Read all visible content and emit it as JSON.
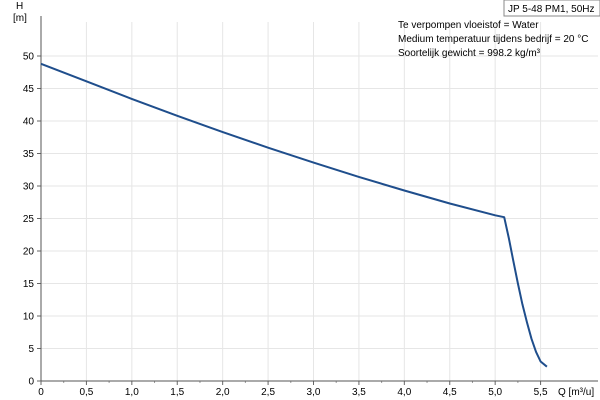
{
  "chart_data": {
    "type": "line",
    "title": "JP 5-48 PM1, 50Hz",
    "xlabel": "Q [m³/u]",
    "ylabel_top": "H",
    "ylabel_unit": "[m]",
    "xlim": [
      0,
      5.6
    ],
    "ylim": [
      0,
      52
    ],
    "x_ticks": [
      "0",
      "0,5",
      "1,0",
      "1,5",
      "2,0",
      "2,5",
      "3,0",
      "3,5",
      "4,0",
      "4,5",
      "5,0",
      "5,5"
    ],
    "y_ticks": [
      "0",
      "5",
      "10",
      "15",
      "20",
      "25",
      "30",
      "35",
      "40",
      "45",
      "50"
    ],
    "grid": true,
    "annotations": [
      "Te verpompen vloeistof = Water",
      "Medium temperatuur tijdens bedrijf = 20 °C",
      "Soortelijk gewicht = 998.2 kg/m³"
    ],
    "series": [
      {
        "color": "#1f4e8c",
        "points": [
          [
            0,
            48.8
          ],
          [
            0.5,
            46.1
          ],
          [
            1.0,
            43.4
          ],
          [
            1.5,
            40.8
          ],
          [
            2.0,
            38.3
          ],
          [
            2.5,
            35.9
          ],
          [
            3.0,
            33.6
          ],
          [
            3.5,
            31.4
          ],
          [
            4.0,
            29.3
          ],
          [
            4.5,
            27.3
          ],
          [
            5.0,
            25.5
          ],
          [
            5.1,
            25.2
          ],
          [
            5.15,
            22.0
          ],
          [
            5.2,
            18.5
          ],
          [
            5.25,
            15.0
          ],
          [
            5.3,
            11.8
          ],
          [
            5.35,
            9.0
          ],
          [
            5.4,
            6.5
          ],
          [
            5.45,
            4.5
          ],
          [
            5.5,
            3.0
          ],
          [
            5.57,
            2.2
          ]
        ]
      }
    ]
  }
}
